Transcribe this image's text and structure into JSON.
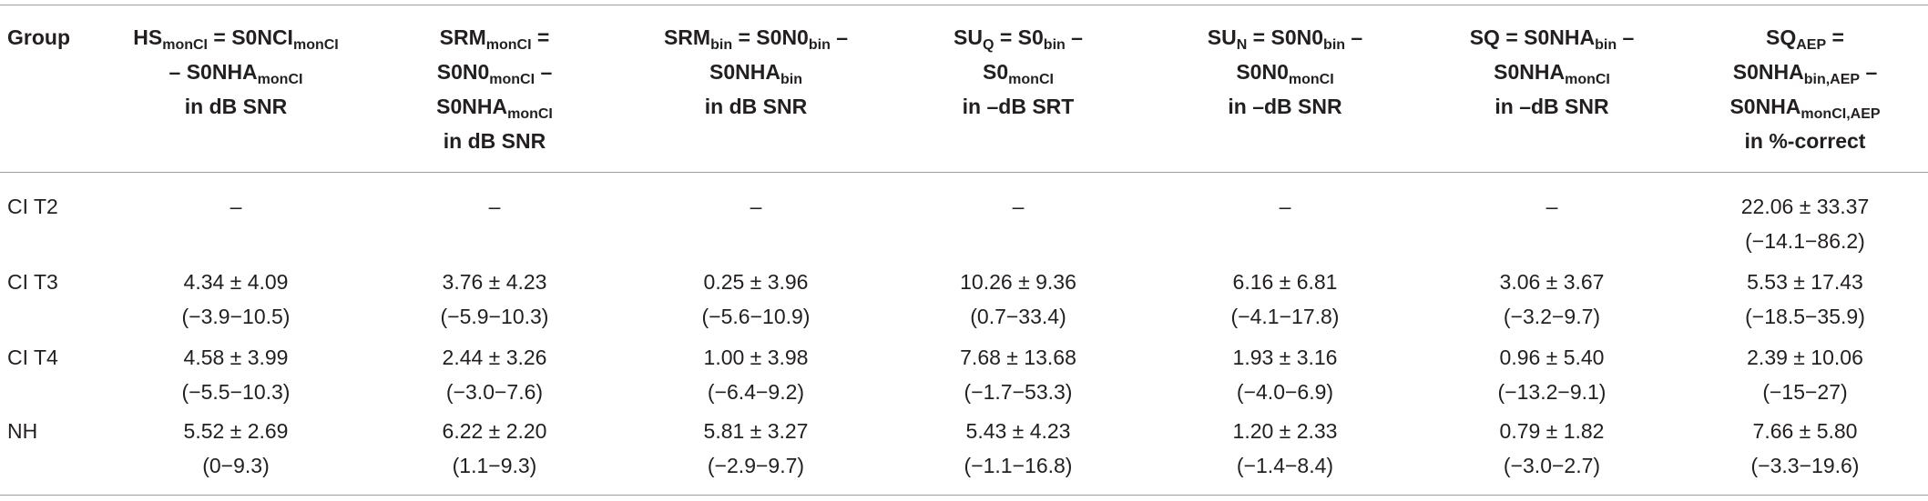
{
  "table": {
    "header": [
      [
        [
          "Group"
        ]
      ],
      [
        [
          "HS",
          {
            "sub": "monCI"
          },
          " = S0NCI",
          {
            "sub": "monCI"
          }
        ],
        [
          "– S0NHA",
          {
            "sub": "monCI"
          }
        ],
        [
          "in dB SNR"
        ]
      ],
      [
        [
          "SRM",
          {
            "sub": "monCI"
          },
          " ="
        ],
        [
          "S0N0",
          {
            "sub": "monCI"
          },
          " –"
        ],
        [
          "S0NHA",
          {
            "sub": "monCI"
          }
        ],
        [
          "in dB SNR"
        ]
      ],
      [
        [
          "SRM",
          {
            "sub": "bin"
          },
          " = S0N0",
          {
            "sub": "bin"
          },
          " –"
        ],
        [
          "S0NHA",
          {
            "sub": "bin"
          }
        ],
        [
          "in dB SNR"
        ]
      ],
      [
        [
          "SU",
          {
            "sub": "Q"
          },
          " = S0",
          {
            "sub": "bin"
          },
          " –"
        ],
        [
          "S0",
          {
            "sub": "monCI"
          }
        ],
        [
          "in –dB SRT"
        ]
      ],
      [
        [
          "SU",
          {
            "sub": "N"
          },
          " = S0N0",
          {
            "sub": "bin"
          },
          " –"
        ],
        [
          "S0N0",
          {
            "sub": "monCI"
          }
        ],
        [
          "in –dB SNR"
        ]
      ],
      [
        [
          "SQ = S0NHA",
          {
            "sub": "bin"
          },
          " –"
        ],
        [
          "S0NHA",
          {
            "sub": "monCI"
          }
        ],
        [
          "in –dB SNR"
        ]
      ],
      [
        [
          "SQ",
          {
            "sub": "AEP"
          },
          " ="
        ],
        [
          "S0NHA",
          {
            "sub": "bin,AEP"
          },
          " –"
        ],
        [
          "S0NHA",
          {
            "sub": "monCI,AEP"
          }
        ],
        [
          "in %-correct"
        ]
      ]
    ],
    "rows": [
      [
        "CI T2",
        [
          "–"
        ],
        [
          "–"
        ],
        [
          "–"
        ],
        [
          "–"
        ],
        [
          "–"
        ],
        [
          "–"
        ],
        [
          "22.06 ± 33.37",
          "(−14.1−86.2)"
        ]
      ],
      [
        "CI T3",
        [
          "4.34 ± 4.09",
          "(−3.9−10.5)"
        ],
        [
          "3.76 ± 4.23",
          "(−5.9−10.3)"
        ],
        [
          "0.25 ± 3.96",
          "(−5.6−10.9)"
        ],
        [
          "10.26 ± 9.36",
          "(0.7−33.4)"
        ],
        [
          "6.16 ± 6.81",
          "(−4.1−17.8)"
        ],
        [
          "3.06 ± 3.67",
          "(−3.2−9.7)"
        ],
        [
          "5.53 ± 17.43",
          "(−18.5−35.9)"
        ]
      ],
      [
        "CI T4",
        [
          "4.58 ± 3.99",
          "(−5.5−10.3)"
        ],
        [
          "2.44 ± 3.26",
          "(−3.0−7.6)"
        ],
        [
          "1.00 ± 3.98",
          "(−6.4−9.2)"
        ],
        [
          "7.68 ± 13.68",
          "(−1.7−53.3)"
        ],
        [
          "1.93 ± 3.16",
          "(−4.0−6.9)"
        ],
        [
          "0.96 ± 5.40",
          "(−13.2−9.1)"
        ],
        [
          "2.39 ± 10.06",
          "(−15−27)"
        ]
      ],
      [
        "NH",
        [
          "5.52 ± 2.69",
          "(0−9.3)"
        ],
        [
          "6.22 ± 2.20",
          "(1.1−9.3)"
        ],
        [
          "5.81 ± 3.27",
          "(−2.9−9.7)"
        ],
        [
          "5.43 ± 4.23",
          "(−1.1−16.8)"
        ],
        [
          "1.20 ± 2.33",
          "(−1.4−8.4)"
        ],
        [
          "0.79 ± 1.82",
          "(−3.0−2.7)"
        ],
        [
          "7.66 ± 5.80",
          "(−3.3−19.6)"
        ]
      ]
    ]
  }
}
